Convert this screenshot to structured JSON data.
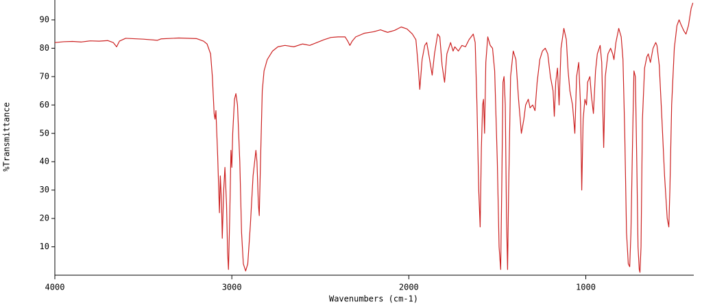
{
  "chart_data": {
    "type": "line",
    "x_label": "Wavenumbers (cm-1)",
    "y_label": "%Transmittance",
    "color": "#cc2020",
    "xlim": [
      4000,
      390
    ],
    "ylim": [
      0,
      97
    ],
    "xticks": [
      4000,
      3000,
      2000,
      1000
    ],
    "yticks": [
      10,
      20,
      30,
      40,
      50,
      60,
      70,
      80,
      90
    ],
    "grid": false,
    "x": [
      4000,
      3950,
      3900,
      3850,
      3800,
      3750,
      3700,
      3670,
      3651,
      3635,
      3600,
      3500,
      3420,
      3400,
      3300,
      3200,
      3160,
      3140,
      3120,
      3110,
      3100,
      3095,
      3090,
      3080,
      3070,
      3065,
      3058,
      3054,
      3046,
      3039,
      3030,
      3024,
      3019,
      3012,
      3005,
      3000,
      2995,
      2985,
      2977,
      2968,
      2955,
      2945,
      2935,
      2922,
      2910,
      2895,
      2880,
      2864,
      2858,
      2850,
      2845,
      2838,
      2828,
      2818,
      2800,
      2770,
      2740,
      2700,
      2650,
      2600,
      2560,
      2520,
      2480,
      2440,
      2400,
      2360,
      2345,
      2333,
      2320,
      2300,
      2250,
      2200,
      2160,
      2120,
      2080,
      2043,
      2010,
      1980,
      1960,
      1950,
      1938,
      1925,
      1910,
      1899,
      1885,
      1868,
      1855,
      1837,
      1825,
      1812,
      1798,
      1785,
      1764,
      1750,
      1740,
      1720,
      1700,
      1680,
      1660,
      1636,
      1625,
      1615,
      1605,
      1597,
      1590,
      1583,
      1578,
      1572,
      1565,
      1554,
      1540,
      1527,
      1515,
      1500,
      1490,
      1481,
      1475,
      1468,
      1462,
      1455,
      1448,
      1442,
      1436,
      1425,
      1410,
      1395,
      1380,
      1364,
      1350,
      1340,
      1325,
      1315,
      1300,
      1287,
      1275,
      1260,
      1245,
      1229,
      1215,
      1200,
      1185,
      1178,
      1170,
      1160,
      1151,
      1140,
      1124,
      1110,
      1100,
      1090,
      1075,
      1062,
      1052,
      1040,
      1030,
      1023,
      1015,
      1005,
      996,
      990,
      977,
      968,
      957,
      945,
      935,
      919,
      910,
      899,
      890,
      875,
      860,
      848,
      841,
      830,
      814,
      800,
      790,
      780,
      770,
      760,
      752,
      745,
      735,
      728,
      720,
      712,
      705,
      698,
      694,
      688,
      680,
      668,
      655,
      647,
      635,
      620,
      605,
      598,
      585,
      570,
      555,
      540,
      531,
      525,
      515,
      500,
      485,
      473,
      460,
      445,
      434,
      420,
      405,
      395
    ],
    "values": [
      82,
      82.3,
      82.4,
      82.2,
      82.6,
      82.5,
      82.7,
      82,
      80.5,
      82.5,
      83.5,
      83.2,
      82.8,
      83.3,
      83.6,
      83.4,
      82.5,
      81.5,
      78,
      70,
      57,
      55,
      58,
      42,
      22,
      35,
      25,
      13,
      30,
      38,
      25,
      8,
      2,
      20,
      44,
      38,
      50,
      62,
      64,
      60,
      40,
      15,
      4,
      1.5,
      4,
      18,
      35,
      44,
      40,
      25,
      21,
      40,
      65,
      72,
      76,
      79,
      80.5,
      81,
      80.5,
      81.5,
      81,
      82,
      83,
      83.8,
      84,
      84,
      82.5,
      81,
      82.5,
      84,
      85.3,
      85.8,
      86.5,
      85.6,
      86.3,
      87.5,
      86.8,
      85,
      83,
      76,
      65.5,
      76,
      81,
      82,
      77,
      70.5,
      78,
      85,
      84,
      74,
      68,
      78,
      82,
      79,
      80.5,
      79,
      81,
      80.5,
      83,
      85,
      82,
      60,
      30,
      17,
      45,
      60,
      62,
      50,
      75,
      84,
      81,
      80,
      72,
      40,
      10,
      2,
      30,
      68,
      70,
      60,
      20,
      2,
      30,
      70,
      79,
      76,
      62,
      50,
      55,
      60,
      62,
      59,
      60,
      58,
      68,
      76,
      79,
      80,
      78,
      70,
      65,
      56,
      68,
      73,
      60,
      80,
      87,
      83,
      72,
      65,
      60,
      50,
      70,
      75,
      60,
      30,
      55,
      62,
      60,
      68,
      70,
      63,
      57,
      72,
      78,
      81,
      75,
      45,
      70,
      78,
      80,
      78,
      76,
      82,
      87,
      84,
      76,
      50,
      15,
      4,
      3,
      15,
      50,
      72,
      70,
      40,
      10,
      2,
      1,
      10,
      55,
      73,
      77,
      78,
      75,
      80,
      82,
      81,
      74,
      55,
      35,
      20,
      17,
      30,
      60,
      80,
      88,
      90,
      88,
      86,
      85,
      88,
      94,
      96
    ]
  }
}
